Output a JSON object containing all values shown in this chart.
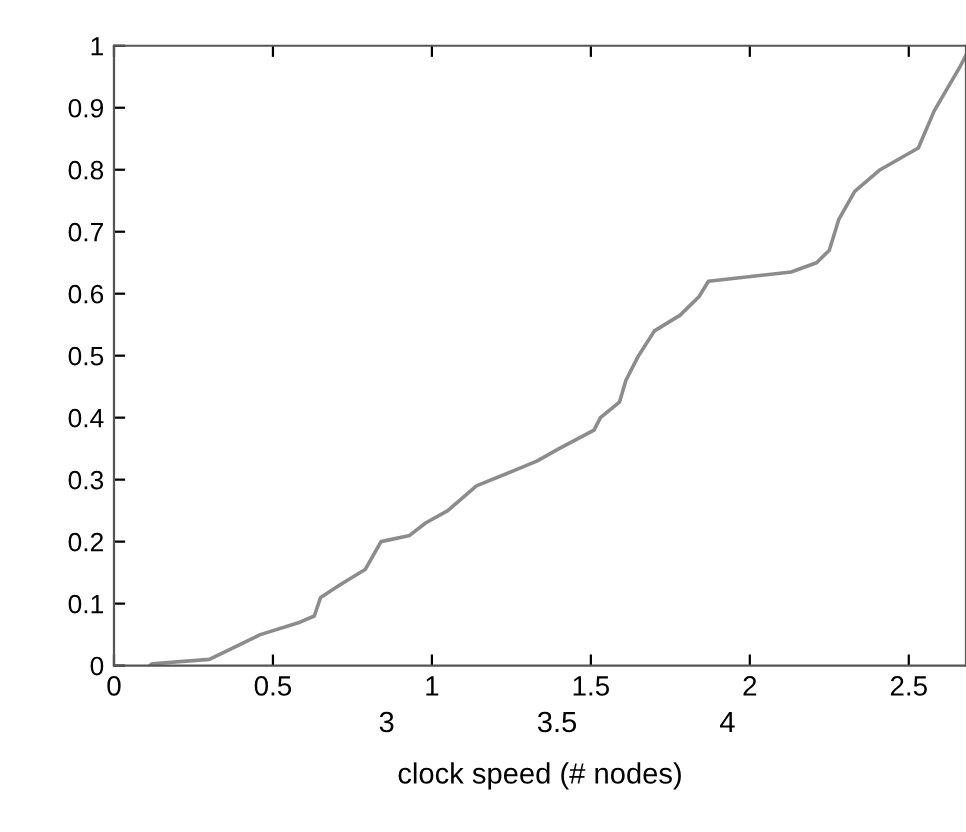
{
  "chart_data": {
    "type": "line",
    "xlabel": "clock speed (# nodes)",
    "x": [
      0.113,
      0.12,
      0.3,
      0.365,
      0.46,
      0.585,
      0.63,
      0.65,
      0.71,
      0.79,
      0.84,
      0.93,
      0.98,
      1.05,
      1.14,
      1.26,
      1.33,
      1.4,
      1.51,
      1.53,
      1.59,
      1.61,
      1.65,
      1.7,
      1.78,
      1.84,
      1.87,
      2.13,
      2.21,
      2.25,
      2.28,
      2.33,
      2.41,
      2.53,
      2.58,
      2.66,
      2.68
    ],
    "series": [
      {
        "color": "#8c8c8c",
        "values": [
          0,
          0.003,
          0.01,
          0.026,
          0.05,
          0.07,
          0.08,
          0.11,
          0.13,
          0.155,
          0.2,
          0.21,
          0.23,
          0.25,
          0.29,
          0.315,
          0.33,
          0.35,
          0.38,
          0.4,
          0.425,
          0.46,
          0.5,
          0.54,
          0.565,
          0.595,
          0.62,
          0.635,
          0.65,
          0.67,
          0.72,
          0.765,
          0.8,
          0.835,
          0.895,
          0.965,
          0.985
        ]
      }
    ],
    "xlim": [
      0,
      2.68
    ],
    "ylim": [
      0,
      1
    ],
    "xticks": [
      0,
      0.5,
      1,
      1.5,
      2,
      2.5
    ],
    "yticks": [
      0,
      0.1,
      0.2,
      0.3,
      0.4,
      0.5,
      0.6,
      0.7,
      0.8,
      0.9,
      1
    ],
    "annotations": [
      "3",
      "3.5",
      "4"
    ],
    "grid": false,
    "legend": false,
    "marker": "none",
    "line_style": "solid"
  }
}
